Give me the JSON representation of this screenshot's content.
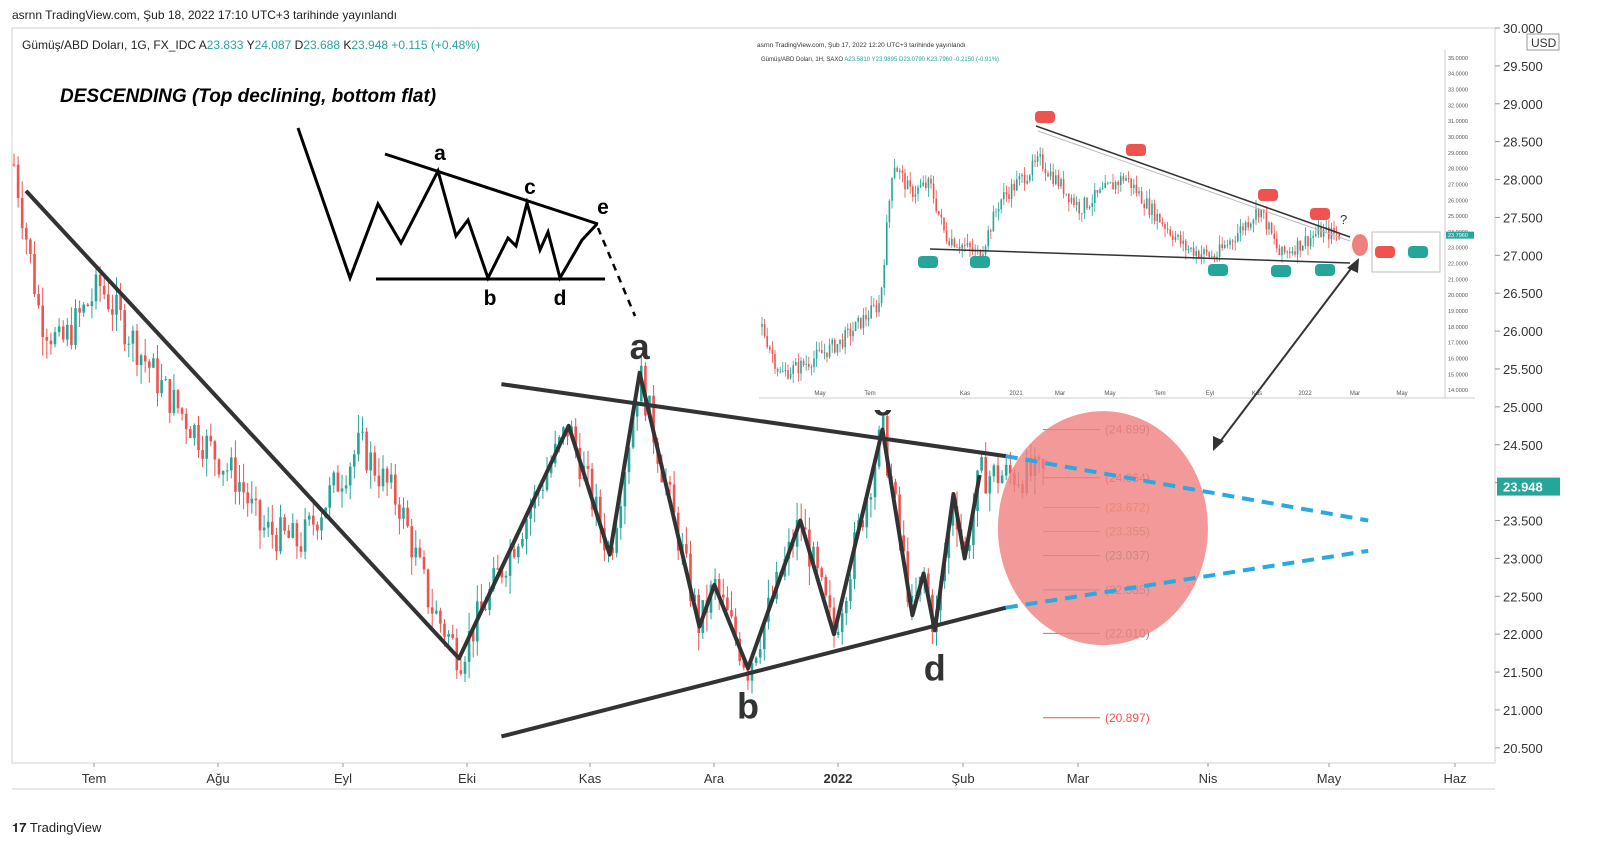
{
  "header": {
    "published": "asrnn TradingView.com, Şub 18, 2022 17:10 UTC+3 tarihinde yayınlandı",
    "symbol": "Gümüş/ABD Doları, 1G, FX_IDC",
    "ohlc": {
      "open_label": "A",
      "open": "23.833",
      "high_label": "Y",
      "high": "24.087",
      "low_label": "D",
      "low": "23.688",
      "close_label": "K",
      "close": "23.948",
      "change": "+0.115 (+0.48%)"
    }
  },
  "brand": "TradingView",
  "colors": {
    "up": "#26a69a",
    "down": "#ef5350",
    "projection": "#29a9e1",
    "target_zone": "#f08080"
  },
  "annotation": {
    "title": "DESCENDING (Top declining, bottom flat)",
    "points": [
      "a",
      "b",
      "c",
      "d",
      "e"
    ]
  },
  "chart_data": {
    "type": "line",
    "y_axis": {
      "currency": "USD",
      "range": [
        20.3,
        30.0
      ],
      "ticks": [
        "30.000",
        "29.500",
        "29.000",
        "28.500",
        "28.000",
        "27.500",
        "27.000",
        "26.500",
        "26.000",
        "25.500",
        "25.000",
        "24.500",
        "24.000",
        "23.500",
        "23.000",
        "22.500",
        "22.000",
        "21.500",
        "21.000",
        "20.500"
      ],
      "last_price": "23.948"
    },
    "x_axis": {
      "ticks": [
        "Tem",
        "Ağu",
        "Eyl",
        "Eki",
        "Kas",
        "Ara",
        "2022",
        "Şub",
        "Mar",
        "Nis",
        "May",
        "Haz"
      ]
    },
    "wave_points": [
      {
        "label": "",
        "date": "2021-06-17",
        "price": 27.85
      },
      {
        "label": "",
        "date": "2021-09-29",
        "price": 21.68
      },
      {
        "label": "",
        "date": "2021-10-28",
        "price": 24.75
      },
      {
        "label": "",
        "date": "2021-11-08",
        "price": 23.05
      },
      {
        "label": "a",
        "date": "2021-11-16",
        "price": 25.45
      },
      {
        "label": "",
        "date": "2021-12-02",
        "price": 22.1
      },
      {
        "label": "",
        "date": "2021-12-06",
        "price": 22.65
      },
      {
        "label": "b",
        "date": "2021-12-15",
        "price": 21.55
      },
      {
        "label": "",
        "date": "2021-12-29",
        "price": 23.5
      },
      {
        "label": "",
        "date": "2022-01-07",
        "price": 22.0
      },
      {
        "label": "c",
        "date": "2022-01-20",
        "price": 24.7
      },
      {
        "label": "",
        "date": "2022-01-28",
        "price": 22.25
      },
      {
        "label": "",
        "date": "2022-01-31",
        "price": 22.8
      },
      {
        "label": "d",
        "date": "2022-02-03",
        "price": 22.05
      },
      {
        "label": "",
        "date": "2022-02-08",
        "price": 23.85
      },
      {
        "label": "",
        "date": "2022-02-11",
        "price": 23.0
      },
      {
        "label": "",
        "date": "2022-02-15",
        "price": 24.1
      }
    ],
    "trendlines": [
      {
        "name": "",
        "from": {
          "date": "2021-10-10",
          "price": 25.3
        },
        "to": {
          "date": "2022-02-22",
          "price": 24.35
        },
        "style": "solid"
      },
      {
        "name": "",
        "from": {
          "date": "2021-10-10",
          "price": 20.65
        },
        "to": {
          "date": "2022-02-22",
          "price": 22.35
        },
        "style": "solid"
      },
      {
        "name": "",
        "from": {
          "date": "2022-02-22",
          "price": 24.35
        },
        "to": {
          "date": "2022-05-30",
          "price": 23.5
        },
        "style": "dashed"
      },
      {
        "name": "",
        "from": {
          "date": "2022-02-22",
          "price": 22.35
        },
        "to": {
          "date": "2022-05-30",
          "price": 23.1
        },
        "style": "dashed"
      }
    ],
    "fib_levels": [
      {
        "label": "(24.699)",
        "price": 24.699,
        "color": "#888888"
      },
      {
        "label": "(24.064)",
        "price": 24.064,
        "color": "#ef5350"
      },
      {
        "label": "(23.672)",
        "price": 23.672,
        "color": "#e0a030"
      },
      {
        "label": "(23.355)",
        "price": 23.355,
        "color": "#8bc34a"
      },
      {
        "label": "(23.037)",
        "price": 23.037,
        "color": "#26a69a"
      },
      {
        "label": "(22.585)",
        "price": 22.585,
        "color": "#29a9e1"
      },
      {
        "label": "(22.010)",
        "price": 22.01,
        "color": "#888888"
      },
      {
        "label": "(20.897)",
        "price": 20.897,
        "color": "#ef5350"
      }
    ],
    "target_zone": {
      "date": "2022-03-20",
      "price": 23.4
    }
  },
  "inset": {
    "published": "asrnn TradingView.com, Şub 17, 2022 12:20 UTC+3 tarihinde yayınlandı",
    "symbol": "Gümüş/ABD Doları, 1H, SAXO",
    "ohlc": "A23.5810 Y23.9895 D23.0790 K23.7960 -0.2150 (-0.91%)",
    "y_ticks": [
      "35.0000",
      "34.0000",
      "33.0000",
      "32.0000",
      "31.0000",
      "30.0000",
      "29.0000",
      "28.0000",
      "27.0000",
      "26.0000",
      "25.0000",
      "24.0000",
      "23.0000",
      "22.0000",
      "21.0000",
      "20.0000",
      "19.0000",
      "18.0000",
      "17.0000",
      "16.0000",
      "15.0000",
      "14.0000"
    ],
    "x_ticks": [
      "May",
      "Tem",
      "Kas",
      "2021",
      "Mar",
      "May",
      "Tem",
      "Eyl",
      "Kas",
      "2022",
      "Mar",
      "May"
    ],
    "last_price": "23.7960",
    "question": "?"
  }
}
